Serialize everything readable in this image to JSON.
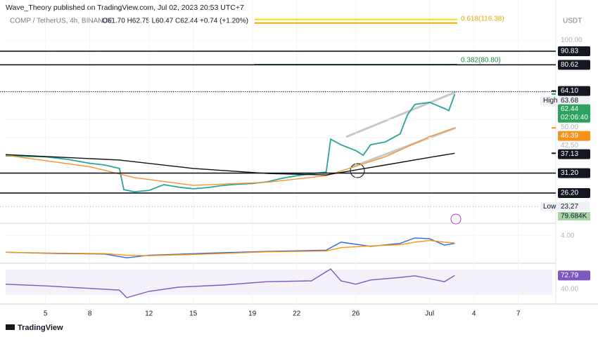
{
  "header": {
    "publisher": "Wave_Theory published on TradingView.com, Jul 02, 2023 20:53 UTC+7"
  },
  "footer": {
    "brand": "TradingView"
  },
  "chart_data": [
    {
      "type": "line",
      "title": "COMP / TetherUS, 4h, BINANCE",
      "ohlc": "O61.70 H62.75 L60.47 C62.44 +0.74 (+1.20%)",
      "currency": "USDT",
      "log_scale": true,
      "xlim": [
        2.3,
        39.3
      ],
      "xticks": [
        5,
        8,
        12,
        15,
        19,
        22,
        26,
        {
          "value": 31,
          "label": "Jul"
        },
        {
          "value": 34,
          "label": "4"
        },
        {
          "value": 37,
          "label": "7"
        }
      ],
      "ylim": [
        20.1,
        135.5
      ],
      "yticks": [
        {
          "value": 100,
          "label": "100.00"
        },
        {
          "value": 50,
          "label": "50.00"
        },
        {
          "value": 42.5,
          "label": "42.50"
        }
      ],
      "series": [
        {
          "color": "#26a69a",
          "x": [
            2.3,
            5,
            6.5,
            8,
            9,
            10,
            10.3,
            11,
            12,
            13,
            14,
            15,
            16,
            17,
            18,
            19,
            20,
            21,
            22,
            23,
            24,
            24.3,
            25,
            26,
            26.5,
            27,
            28,
            29,
            29.5,
            30,
            31,
            32,
            32.3,
            32.7
          ],
          "values": [
            36.3,
            36,
            35.2,
            34,
            33.5,
            32.5,
            27,
            26.5,
            26.8,
            28.2,
            27.6,
            27.2,
            27.5,
            28,
            28.3,
            28.5,
            28.9,
            29.8,
            30.5,
            31,
            31.5,
            42,
            40,
            38,
            36.5,
            40,
            41,
            44,
            52,
            57,
            58,
            55,
            54,
            62.44
          ]
        },
        {
          "color": "#f5962a",
          "x": [
            2.3,
            8,
            11,
            15,
            20,
            24,
            28,
            31,
            32.7
          ],
          "values": [
            36.5,
            33,
            30,
            28,
            28.8,
            30.5,
            36,
            43,
            46.39
          ]
        },
        {
          "color": "#111111",
          "x": [
            2.3,
            10,
            15,
            20,
            24,
            28,
            31,
            32.7
          ],
          "values": [
            36.7,
            35,
            32.5,
            31.1,
            30.7,
            33.5,
            35.8,
            37.13
          ]
        }
      ],
      "fib_levels": [
        {
          "value": 116.38,
          "label": "0.618(116.38)",
          "color": "#f2a900"
        },
        {
          "value": 80.8,
          "label": "0.382(80.80)",
          "color": "#1b8a3a"
        }
      ],
      "levels": [
        {
          "value": 90.83,
          "label": "90.83",
          "color": "#131722",
          "line": true
        },
        {
          "value": 80.62,
          "label": "80.62",
          "color": "#131722",
          "line": true
        },
        {
          "value": 64.1,
          "label": "64.10",
          "color": "#131722",
          "line": false
        },
        {
          "value": 62.44,
          "label": "62.44",
          "color": "#2ba35a",
          "line": false
        },
        {
          "value": 46.39,
          "label": "46.39",
          "color": "#f7931a",
          "line": false
        },
        {
          "value": 37.13,
          "label": "37.13",
          "color": "#131722",
          "line": false
        },
        {
          "value": 31.2,
          "label": "31.20",
          "color": "#131722",
          "line": true
        },
        {
          "value": 26.2,
          "label": "26.20",
          "color": "#131722",
          "line": true
        }
      ],
      "high": {
        "text": "High",
        "value": 63.68,
        "label": "63.68"
      },
      "low": {
        "text": "Low",
        "value": 23.27,
        "label": "23.27"
      },
      "countdown": "02:06:40",
      "volume_label": "79.684K"
    },
    {
      "type": "line",
      "ylim": [
        -2,
        6.3
      ],
      "yticks": [
        {
          "value": 4,
          "label": "4.00"
        }
      ],
      "series": [
        {
          "color": "#2962ff",
          "x": [
            2.3,
            6,
            9,
            10.5,
            12,
            16,
            20,
            24,
            25,
            27,
            29,
            30,
            31,
            32,
            32.7
          ],
          "values": [
            0.1,
            -0.2,
            -0.3,
            -1.2,
            -0.6,
            -0.1,
            0.3,
            0.6,
            2.5,
            1.5,
            2.2,
            3.5,
            3.3,
            1.8,
            2.2
          ]
        },
        {
          "color": "#ff9800",
          "x": [
            2.3,
            6,
            9,
            10.5,
            12,
            16,
            20,
            24,
            25,
            27,
            29,
            30,
            31,
            32,
            32.7
          ],
          "values": [
            0.1,
            -0.1,
            -0.2,
            -0.6,
            -0.7,
            -0.3,
            0.2,
            0.4,
            1.2,
            1.6,
            1.9,
            2.5,
            2.9,
            2.5,
            2.3
          ]
        }
      ]
    },
    {
      "type": "line",
      "ylim": [
        10,
        100
      ],
      "yticks": [
        {
          "value": 40,
          "label": "40.00"
        }
      ],
      "series": [
        {
          "color": "#7e57c2",
          "x": [
            2.3,
            5,
            8,
            10,
            10.5,
            12,
            14,
            17,
            20,
            23,
            24.3,
            25,
            26,
            27,
            29,
            30,
            31,
            32,
            32.7
          ],
          "values": [
            52,
            48,
            42,
            38,
            20,
            35,
            45,
            50,
            58,
            60,
            88,
            60,
            52,
            62,
            68,
            72,
            65,
            58,
            72.79
          ]
        }
      ],
      "last": {
        "value": 72.79,
        "label": "72.79"
      }
    }
  ]
}
